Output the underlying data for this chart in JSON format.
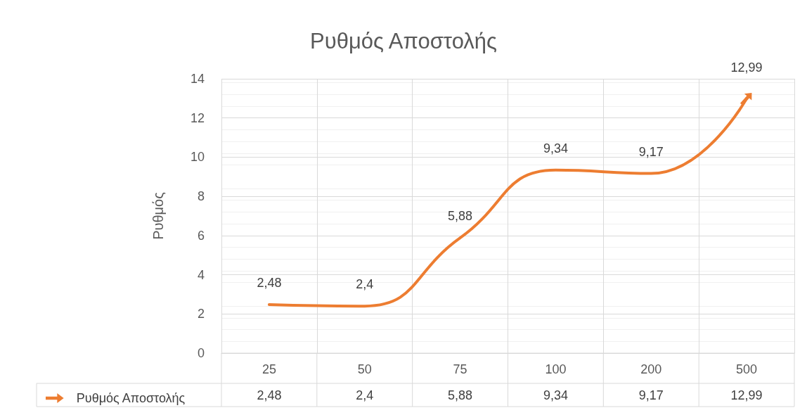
{
  "chart_data": {
    "type": "line",
    "title": "Ρυθμός Αποστολής",
    "ylabel": "Ρυθμός",
    "categories": [
      "25",
      "50",
      "75",
      "100",
      "200",
      "500"
    ],
    "series": [
      {
        "name": "Ρυθμός Αποστολής",
        "color": "#ed7d31",
        "values": [
          2.48,
          2.4,
          5.88,
          9.34,
          9.17,
          12.99
        ],
        "value_labels": [
          "2,48",
          "2,4",
          "5,88",
          "9,34",
          "9,17",
          "12,99"
        ]
      }
    ],
    "ylim": [
      0,
      14
    ],
    "yticks": [
      0,
      2,
      4,
      6,
      8,
      10,
      12,
      14
    ],
    "grid": true,
    "legend": "bottom",
    "marker": "none",
    "line_style": "solid"
  }
}
